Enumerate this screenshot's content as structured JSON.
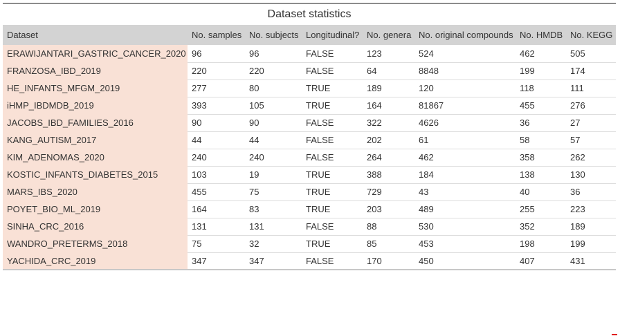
{
  "title": "Dataset statistics",
  "columns": [
    "Dataset",
    "No. samples",
    "No. subjects",
    "Longitudinal?",
    "No. genera",
    "No. original compounds",
    "No. HMDB",
    "No. KEGG"
  ],
  "rows": [
    [
      "ERAWIJANTARI_GASTRIC_CANCER_2020",
      "96",
      "96",
      "FALSE",
      "123",
      "524",
      "462",
      "505"
    ],
    [
      "FRANZOSA_IBD_2019",
      "220",
      "220",
      "FALSE",
      "64",
      "8848",
      "199",
      "174"
    ],
    [
      "HE_INFANTS_MFGM_2019",
      "277",
      "80",
      "TRUE",
      "189",
      "120",
      "118",
      "111"
    ],
    [
      "iHMP_IBDMDB_2019",
      "393",
      "105",
      "TRUE",
      "164",
      "81867",
      "455",
      "276"
    ],
    [
      "JACOBS_IBD_FAMILIES_2016",
      "90",
      "90",
      "FALSE",
      "322",
      "4626",
      "36",
      "27"
    ],
    [
      "KANG_AUTISM_2017",
      "44",
      "44",
      "FALSE",
      "202",
      "61",
      "58",
      "57"
    ],
    [
      "KIM_ADENOMAS_2020",
      "240",
      "240",
      "FALSE",
      "264",
      "462",
      "358",
      "262"
    ],
    [
      "KOSTIC_INFANTS_DIABETES_2015",
      "103",
      "19",
      "TRUE",
      "388",
      "184",
      "138",
      "130"
    ],
    [
      "MARS_IBS_2020",
      "455",
      "75",
      "TRUE",
      "729",
      "43",
      "40",
      "36"
    ],
    [
      "POYET_BIO_ML_2019",
      "164",
      "83",
      "TRUE",
      "203",
      "489",
      "255",
      "223"
    ],
    [
      "SINHA_CRC_2016",
      "131",
      "131",
      "FALSE",
      "88",
      "530",
      "352",
      "189"
    ],
    [
      "WANDRO_PRETERMS_2018",
      "75",
      "32",
      "TRUE",
      "85",
      "453",
      "198",
      "199"
    ],
    [
      "YACHIDA_CRC_2019",
      "347",
      "347",
      "FALSE",
      "170",
      "450",
      "407",
      "431"
    ]
  ],
  "colors": {
    "header_bg": "#d3d3d3",
    "dataset_col_bg": "#f9e1d6",
    "text": "#333333"
  }
}
